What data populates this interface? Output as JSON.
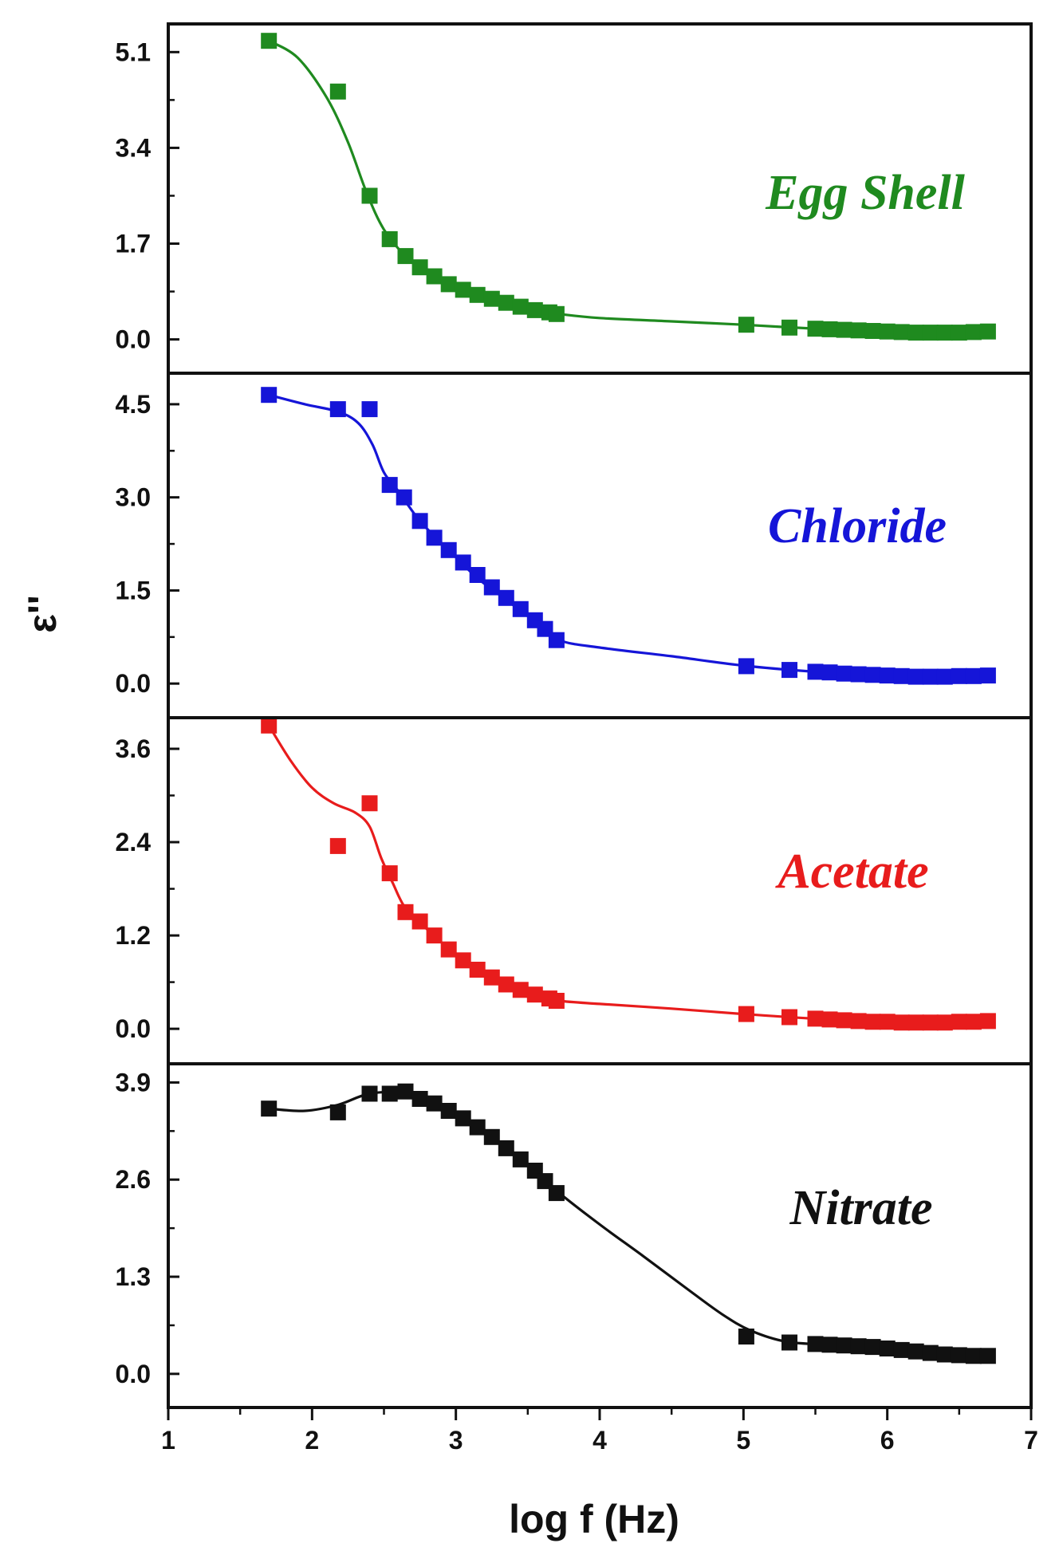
{
  "chart_data": {
    "type": "scatter",
    "layout": "stacked-panels",
    "xlabel": "log f (Hz)",
    "ylabel": "ε''",
    "xlim": [
      1,
      7
    ],
    "xticks": [
      "1",
      "2",
      "3",
      "4",
      "5",
      "6",
      "7"
    ],
    "panels": [
      {
        "name": "Egg Shell",
        "color": "#1f8a1f",
        "ylim": [
          -0.6,
          5.6
        ],
        "yticks": [
          "0.0",
          "1.7",
          "3.4",
          "5.1"
        ],
        "ytick_values": [
          0,
          1.7,
          3.4,
          5.1
        ],
        "points": [
          [
            1.7,
            5.3
          ],
          [
            2.18,
            4.4
          ],
          [
            2.4,
            2.55
          ],
          [
            2.54,
            1.78
          ],
          [
            2.65,
            1.48
          ],
          [
            2.75,
            1.28
          ],
          [
            2.85,
            1.12
          ],
          [
            2.95,
            0.98
          ],
          [
            3.05,
            0.88
          ],
          [
            3.15,
            0.79
          ],
          [
            3.25,
            0.72
          ],
          [
            3.35,
            0.65
          ],
          [
            3.45,
            0.58
          ],
          [
            3.55,
            0.52
          ],
          [
            3.65,
            0.48
          ],
          [
            3.7,
            0.45
          ],
          [
            5.02,
            0.26
          ],
          [
            5.32,
            0.21
          ],
          [
            5.5,
            0.19
          ],
          [
            5.6,
            0.18
          ],
          [
            5.7,
            0.17
          ],
          [
            5.8,
            0.16
          ],
          [
            5.9,
            0.15
          ],
          [
            6.0,
            0.14
          ],
          [
            6.1,
            0.13
          ],
          [
            6.2,
            0.12
          ],
          [
            6.3,
            0.12
          ],
          [
            6.4,
            0.12
          ],
          [
            6.5,
            0.12
          ],
          [
            6.6,
            0.13
          ],
          [
            6.7,
            0.14
          ]
        ],
        "fit": [
          [
            1.7,
            5.3
          ],
          [
            1.9,
            5.0
          ],
          [
            2.1,
            4.3
          ],
          [
            2.25,
            3.5
          ],
          [
            2.38,
            2.6
          ],
          [
            2.5,
            1.95
          ],
          [
            2.65,
            1.48
          ],
          [
            2.8,
            1.2
          ],
          [
            3.0,
            0.92
          ],
          [
            3.2,
            0.74
          ],
          [
            3.4,
            0.6
          ],
          [
            3.6,
            0.5
          ],
          [
            3.72,
            0.45
          ],
          [
            4.0,
            0.38
          ],
          [
            4.5,
            0.32
          ],
          [
            5.0,
            0.26
          ],
          [
            5.5,
            0.19
          ],
          [
            6.0,
            0.14
          ],
          [
            6.4,
            0.12
          ],
          [
            6.72,
            0.14
          ]
        ]
      },
      {
        "name": "Chloride",
        "color": "#1515d8",
        "ylim": [
          -0.55,
          5.0
        ],
        "yticks": [
          "0.0",
          "1.5",
          "3.0",
          "4.5"
        ],
        "ytick_values": [
          0,
          1.5,
          3.0,
          4.5
        ],
        "points": [
          [
            1.7,
            4.65
          ],
          [
            2.18,
            4.42
          ],
          [
            2.4,
            4.42
          ],
          [
            2.54,
            3.2
          ],
          [
            2.64,
            3.0
          ],
          [
            2.75,
            2.62
          ],
          [
            2.85,
            2.35
          ],
          [
            2.95,
            2.15
          ],
          [
            3.05,
            1.95
          ],
          [
            3.15,
            1.75
          ],
          [
            3.25,
            1.55
          ],
          [
            3.35,
            1.38
          ],
          [
            3.45,
            1.2
          ],
          [
            3.55,
            1.02
          ],
          [
            3.62,
            0.88
          ],
          [
            3.7,
            0.7
          ],
          [
            5.02,
            0.28
          ],
          [
            5.32,
            0.22
          ],
          [
            5.5,
            0.19
          ],
          [
            5.6,
            0.18
          ],
          [
            5.7,
            0.16
          ],
          [
            5.8,
            0.15
          ],
          [
            5.9,
            0.14
          ],
          [
            6.0,
            0.13
          ],
          [
            6.1,
            0.12
          ],
          [
            6.2,
            0.11
          ],
          [
            6.3,
            0.11
          ],
          [
            6.4,
            0.11
          ],
          [
            6.5,
            0.12
          ],
          [
            6.6,
            0.12
          ],
          [
            6.7,
            0.13
          ]
        ],
        "fit": [
          [
            1.7,
            4.65
          ],
          [
            1.95,
            4.5
          ],
          [
            2.18,
            4.38
          ],
          [
            2.32,
            4.2
          ],
          [
            2.42,
            3.85
          ],
          [
            2.5,
            3.4
          ],
          [
            2.6,
            3.1
          ],
          [
            2.75,
            2.62
          ],
          [
            2.95,
            2.15
          ],
          [
            3.15,
            1.7
          ],
          [
            3.35,
            1.35
          ],
          [
            3.55,
            1.0
          ],
          [
            3.72,
            0.7
          ],
          [
            4.0,
            0.58
          ],
          [
            4.5,
            0.44
          ],
          [
            5.0,
            0.29
          ],
          [
            5.5,
            0.19
          ],
          [
            6.0,
            0.13
          ],
          [
            6.4,
            0.11
          ],
          [
            6.72,
            0.13
          ]
        ]
      },
      {
        "name": "Acetate",
        "color": "#e81c1c",
        "ylim": [
          -0.45,
          4.0
        ],
        "yticks": [
          "0.0",
          "1.2",
          "2.4",
          "3.6"
        ],
        "ytick_values": [
          0,
          1.2,
          2.4,
          3.6
        ],
        "points": [
          [
            1.7,
            3.9
          ],
          [
            2.18,
            2.35
          ],
          [
            2.4,
            2.9
          ],
          [
            2.54,
            2.0
          ],
          [
            2.65,
            1.5
          ],
          [
            2.75,
            1.38
          ],
          [
            2.85,
            1.2
          ],
          [
            2.95,
            1.02
          ],
          [
            3.05,
            0.88
          ],
          [
            3.15,
            0.76
          ],
          [
            3.25,
            0.66
          ],
          [
            3.35,
            0.57
          ],
          [
            3.45,
            0.5
          ],
          [
            3.55,
            0.44
          ],
          [
            3.65,
            0.39
          ],
          [
            3.7,
            0.36
          ],
          [
            5.02,
            0.19
          ],
          [
            5.32,
            0.15
          ],
          [
            5.5,
            0.13
          ],
          [
            5.6,
            0.12
          ],
          [
            5.7,
            0.11
          ],
          [
            5.8,
            0.1
          ],
          [
            5.9,
            0.09
          ],
          [
            6.0,
            0.09
          ],
          [
            6.1,
            0.08
          ],
          [
            6.2,
            0.08
          ],
          [
            6.3,
            0.08
          ],
          [
            6.4,
            0.08
          ],
          [
            6.5,
            0.09
          ],
          [
            6.6,
            0.09
          ],
          [
            6.7,
            0.1
          ]
        ],
        "fit": [
          [
            1.7,
            3.9
          ],
          [
            1.85,
            3.45
          ],
          [
            2.0,
            3.1
          ],
          [
            2.15,
            2.9
          ],
          [
            2.3,
            2.78
          ],
          [
            2.4,
            2.6
          ],
          [
            2.48,
            2.2
          ],
          [
            2.56,
            1.88
          ],
          [
            2.65,
            1.55
          ],
          [
            2.8,
            1.28
          ],
          [
            3.0,
            0.95
          ],
          [
            3.2,
            0.7
          ],
          [
            3.4,
            0.53
          ],
          [
            3.6,
            0.42
          ],
          [
            3.72,
            0.36
          ],
          [
            4.0,
            0.32
          ],
          [
            4.5,
            0.26
          ],
          [
            5.0,
            0.19
          ],
          [
            5.5,
            0.13
          ],
          [
            6.0,
            0.09
          ],
          [
            6.4,
            0.08
          ],
          [
            6.72,
            0.1
          ]
        ]
      },
      {
        "name": "Nitrate",
        "color": "#111111",
        "ylim": [
          -0.45,
          4.15
        ],
        "yticks": [
          "0.0",
          "1.3",
          "2.6",
          "3.9"
        ],
        "ytick_values": [
          0,
          1.3,
          2.6,
          3.9
        ],
        "points": [
          [
            1.7,
            3.55
          ],
          [
            2.18,
            3.5
          ],
          [
            2.4,
            3.75
          ],
          [
            2.54,
            3.75
          ],
          [
            2.65,
            3.78
          ],
          [
            2.75,
            3.68
          ],
          [
            2.85,
            3.62
          ],
          [
            2.95,
            3.52
          ],
          [
            3.05,
            3.42
          ],
          [
            3.15,
            3.3
          ],
          [
            3.25,
            3.17
          ],
          [
            3.35,
            3.02
          ],
          [
            3.45,
            2.87
          ],
          [
            3.55,
            2.72
          ],
          [
            3.62,
            2.58
          ],
          [
            3.7,
            2.42
          ],
          [
            5.02,
            0.5
          ],
          [
            5.32,
            0.42
          ],
          [
            5.5,
            0.4
          ],
          [
            5.6,
            0.39
          ],
          [
            5.7,
            0.38
          ],
          [
            5.8,
            0.37
          ],
          [
            5.9,
            0.36
          ],
          [
            6.0,
            0.34
          ],
          [
            6.1,
            0.32
          ],
          [
            6.2,
            0.3
          ],
          [
            6.3,
            0.28
          ],
          [
            6.4,
            0.26
          ],
          [
            6.5,
            0.25
          ],
          [
            6.6,
            0.24
          ],
          [
            6.7,
            0.24
          ]
        ],
        "fit": [
          [
            1.7,
            3.55
          ],
          [
            1.95,
            3.52
          ],
          [
            2.18,
            3.6
          ],
          [
            2.4,
            3.75
          ],
          [
            2.65,
            3.76
          ],
          [
            2.85,
            3.62
          ],
          [
            3.05,
            3.42
          ],
          [
            3.3,
            3.1
          ],
          [
            3.5,
            2.8
          ],
          [
            3.72,
            2.42
          ],
          [
            4.0,
            2.0
          ],
          [
            4.3,
            1.58
          ],
          [
            4.6,
            1.15
          ],
          [
            4.85,
            0.8
          ],
          [
            5.05,
            0.58
          ],
          [
            5.3,
            0.43
          ],
          [
            5.6,
            0.39
          ],
          [
            6.0,
            0.34
          ],
          [
            6.4,
            0.26
          ],
          [
            6.72,
            0.24
          ]
        ]
      }
    ]
  }
}
